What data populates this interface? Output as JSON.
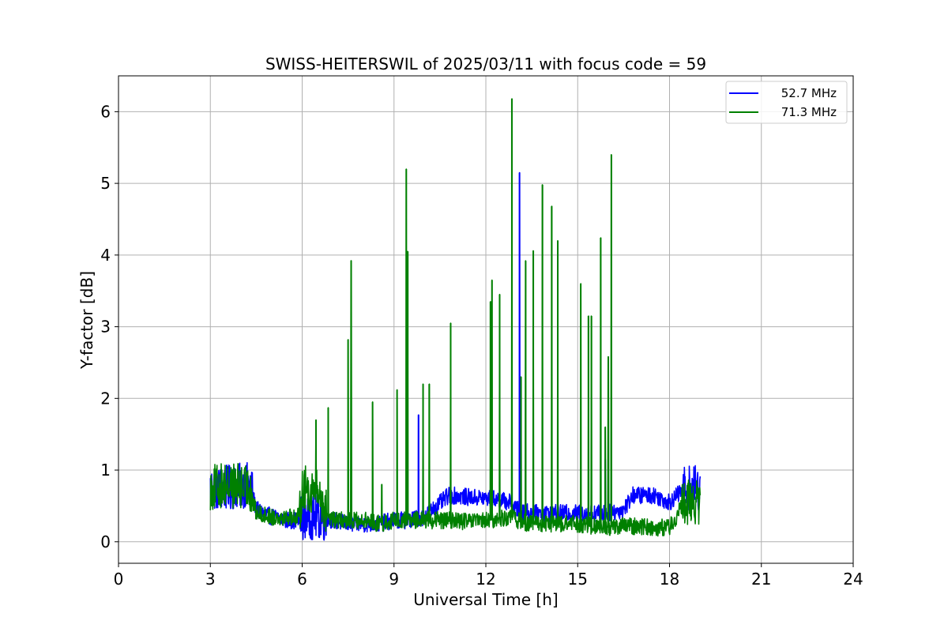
{
  "chart_data": {
    "type": "line",
    "title": "SWISS-HEITERSWIL of 2025/03/11 with focus code = 59",
    "xlabel": "Universal Time [h]",
    "ylabel": "Y-factor [dB]",
    "xlim": [
      0,
      24
    ],
    "ylim": [
      -0.3,
      6.5
    ],
    "xticks": [
      0,
      3,
      6,
      9,
      12,
      15,
      18,
      21,
      24
    ],
    "yticks": [
      0,
      1,
      2,
      3,
      4,
      5,
      6
    ],
    "grid": true,
    "legend_position": "top-right",
    "series": [
      {
        "name": "52.7 MHz",
        "color": "#0000ff",
        "baseline": [
          [
            3.0,
            0.75
          ],
          [
            3.5,
            0.75
          ],
          [
            4.3,
            0.8
          ],
          [
            4.5,
            0.45
          ],
          [
            5.0,
            0.35
          ],
          [
            5.5,
            0.3
          ],
          [
            5.9,
            0.3
          ],
          [
            6.0,
            0.35
          ],
          [
            6.5,
            0.35
          ],
          [
            7.0,
            0.3
          ],
          [
            7.5,
            0.25
          ],
          [
            8.0,
            0.25
          ],
          [
            8.5,
            0.25
          ],
          [
            9.0,
            0.3
          ],
          [
            9.5,
            0.3
          ],
          [
            10.0,
            0.35
          ],
          [
            10.8,
            0.65
          ],
          [
            11.5,
            0.62
          ],
          [
            12.3,
            0.6
          ],
          [
            12.8,
            0.55
          ],
          [
            13.0,
            0.45
          ],
          [
            13.5,
            0.4
          ],
          [
            14.0,
            0.4
          ],
          [
            14.5,
            0.4
          ],
          [
            15.0,
            0.4
          ],
          [
            15.5,
            0.4
          ],
          [
            16.0,
            0.4
          ],
          [
            16.5,
            0.45
          ],
          [
            16.8,
            0.65
          ],
          [
            17.5,
            0.65
          ],
          [
            18.0,
            0.55
          ],
          [
            18.5,
            0.75
          ],
          [
            19.0,
            0.75
          ]
        ],
        "spikes": [
          [
            9.8,
            1.77
          ],
          [
            13.1,
            5.15
          ],
          [
            15.9,
            1.15
          ]
        ]
      },
      {
        "name": "71.3 MHz",
        "color": "#008000",
        "baseline": [
          [
            3.0,
            0.75
          ],
          [
            3.5,
            0.8
          ],
          [
            4.3,
            0.75
          ],
          [
            4.5,
            0.4
          ],
          [
            5.0,
            0.35
          ],
          [
            5.5,
            0.35
          ],
          [
            5.9,
            0.35
          ],
          [
            6.0,
            0.75
          ],
          [
            6.5,
            0.7
          ],
          [
            6.8,
            0.4
          ],
          [
            7.0,
            0.3
          ],
          [
            7.5,
            0.3
          ],
          [
            8.0,
            0.3
          ],
          [
            8.5,
            0.25
          ],
          [
            9.0,
            0.3
          ],
          [
            9.5,
            0.3
          ],
          [
            10.0,
            0.3
          ],
          [
            10.8,
            0.3
          ],
          [
            11.5,
            0.28
          ],
          [
            12.3,
            0.3
          ],
          [
            12.8,
            0.35
          ],
          [
            13.0,
            0.3
          ],
          [
            13.5,
            0.25
          ],
          [
            14.0,
            0.25
          ],
          [
            14.5,
            0.25
          ],
          [
            15.0,
            0.25
          ],
          [
            15.5,
            0.22
          ],
          [
            16.0,
            0.2
          ],
          [
            16.5,
            0.22
          ],
          [
            17.0,
            0.22
          ],
          [
            17.5,
            0.2
          ],
          [
            18.0,
            0.2
          ],
          [
            18.5,
            0.55
          ],
          [
            19.0,
            0.55
          ]
        ],
        "spikes": [
          [
            6.45,
            1.7
          ],
          [
            6.85,
            1.87
          ],
          [
            7.5,
            2.82
          ],
          [
            7.6,
            3.92
          ],
          [
            8.3,
            1.95
          ],
          [
            8.6,
            0.8
          ],
          [
            9.1,
            2.12
          ],
          [
            9.4,
            5.2
          ],
          [
            9.45,
            4.05
          ],
          [
            9.95,
            2.2
          ],
          [
            10.15,
            2.2
          ],
          [
            10.85,
            3.05
          ],
          [
            12.15,
            3.35
          ],
          [
            12.2,
            3.65
          ],
          [
            12.45,
            3.45
          ],
          [
            12.85,
            6.18
          ],
          [
            13.15,
            2.3
          ],
          [
            13.3,
            3.92
          ],
          [
            13.55,
            4.06
          ],
          [
            13.85,
            4.98
          ],
          [
            14.15,
            4.68
          ],
          [
            14.35,
            4.2
          ],
          [
            15.1,
            3.6
          ],
          [
            15.35,
            3.15
          ],
          [
            15.45,
            3.15
          ],
          [
            15.75,
            4.24
          ],
          [
            15.9,
            1.6
          ],
          [
            16.0,
            2.58
          ],
          [
            16.1,
            5.4
          ]
        ]
      }
    ]
  }
}
